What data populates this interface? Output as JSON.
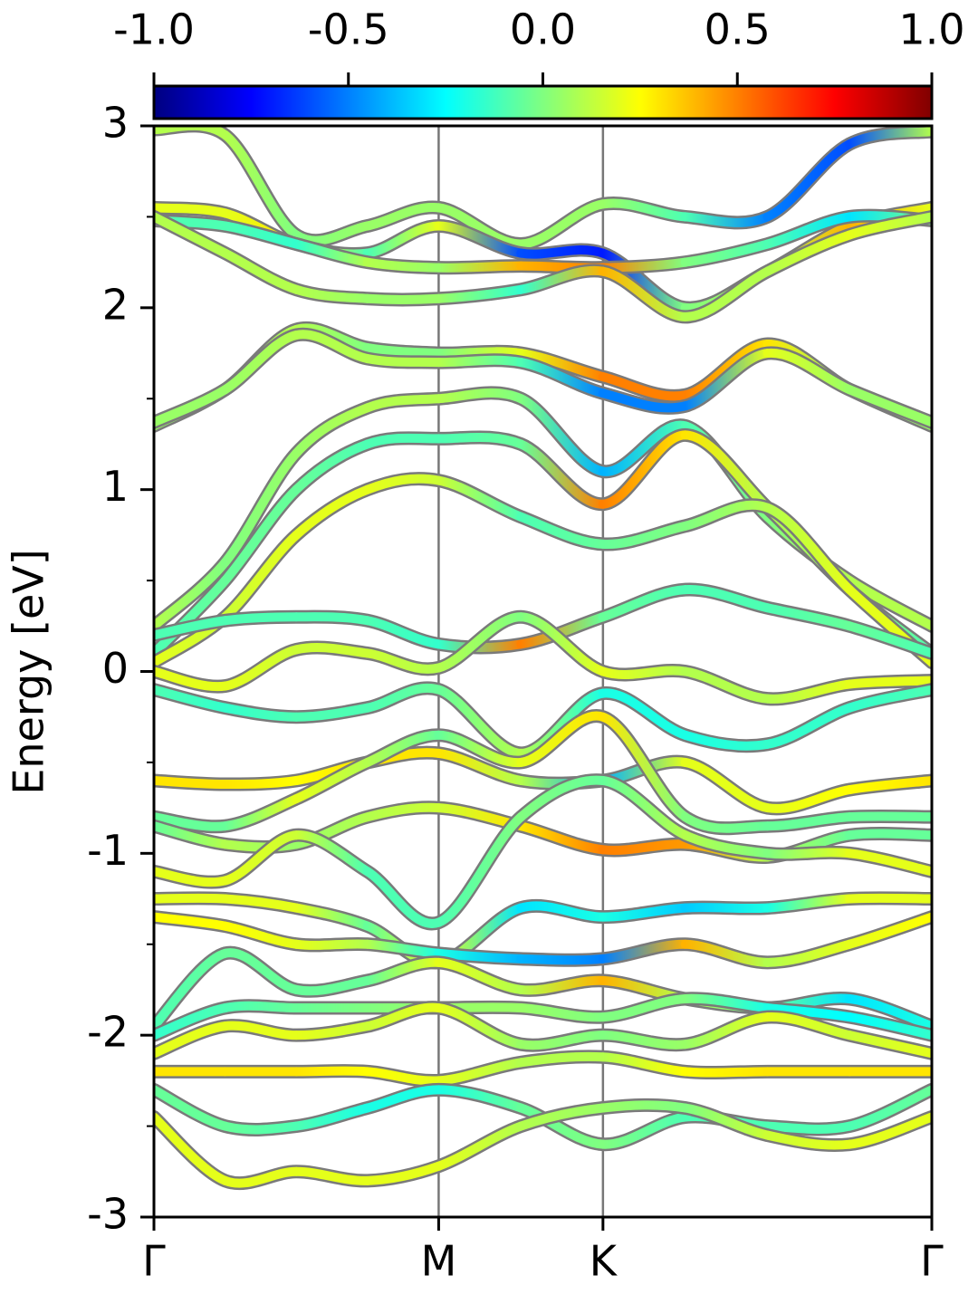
{
  "chart_data": {
    "type": "band_structure",
    "ylabel": "Energy [eV]",
    "colormap": "jet",
    "colorbar": {
      "lim": [
        -1,
        1
      ],
      "ticks": [
        {
          "value": -1,
          "label": "-1.0"
        },
        -0.5,
        {
          "value": 0,
          "label": "0.0"
        },
        0.5,
        {
          "value": 1,
          "label": "1.0"
        }
      ]
    },
    "xlim": [
      0,
      2.732
    ],
    "xticks": [
      {
        "value": 0,
        "label": "Γ"
      },
      {
        "value": 1,
        "label": "M"
      },
      {
        "value": 1.577,
        "label": "K"
      },
      {
        "value": 2.732,
        "label": "Γ"
      }
    ],
    "ylim": [
      -3,
      3
    ],
    "yticks": [
      -3,
      -2,
      -1,
      0,
      1,
      2,
      3
    ],
    "yminorticks": [
      -2.5,
      -1.5,
      -0.5,
      0.5,
      1.5,
      2.5
    ],
    "x": [
      0,
      0.25,
      0.5,
      0.75,
      1,
      1.289,
      1.577,
      1.866,
      2.155,
      2.443,
      2.732
    ],
    "series": [
      {
        "values": [
          2.98,
          2.95,
          2.4,
          2.45,
          2.55,
          2.35,
          2.57,
          2.5,
          2.5,
          2.9,
          2.97
        ],
        "weights": [
          0.1,
          0.1,
          0,
          0.05,
          0.05,
          0.05,
          0.05,
          -0.1,
          -0.5,
          -0.6,
          0.1
        ]
      },
      {
        "values": [
          2.55,
          2.52,
          2.35,
          2.3,
          2.45,
          2.3,
          2.3,
          2.0,
          2.2,
          2.45,
          2.55
        ],
        "weights": [
          0.2,
          0.2,
          0.3,
          -0.1,
          0.2,
          -0.6,
          -0.7,
          0,
          0.1,
          0.4,
          0.2
        ]
      },
      {
        "values": [
          2.48,
          2.45,
          2.35,
          2.25,
          2.22,
          2.23,
          2.22,
          2.25,
          2.35,
          2.5,
          2.48
        ],
        "weights": [
          -0.1,
          -0.1,
          -0.15,
          0.1,
          0.05,
          0.4,
          0.5,
          0,
          -0.1,
          -0.3,
          0
        ]
      },
      {
        "values": [
          2.5,
          2.3,
          2.1,
          2.05,
          2.05,
          2.1,
          2.2,
          1.95,
          2.2,
          2.4,
          2.5
        ],
        "weights": [
          0.1,
          0.1,
          0.1,
          0.05,
          0.05,
          -0.15,
          0.4,
          0.1,
          0.1,
          0.2,
          0.1
        ]
      },
      {
        "values": [
          1.35,
          1.55,
          1.88,
          1.78,
          1.75,
          1.75,
          1.62,
          1.52,
          1.8,
          1.55,
          1.35
        ],
        "weights": [
          0.05,
          0.05,
          0.1,
          0,
          0,
          0.2,
          0.5,
          0.5,
          0.3,
          0.05,
          0.05
        ]
      },
      {
        "values": [
          1.37,
          1.55,
          1.85,
          1.72,
          1.7,
          1.7,
          1.53,
          1.46,
          1.75,
          1.55,
          1.37
        ],
        "weights": [
          0.05,
          0.05,
          0.1,
          0.1,
          0.1,
          -0.1,
          -0.5,
          -0.5,
          0.2,
          0.05,
          0.05
        ]
      },
      {
        "values": [
          0.25,
          0.6,
          1.2,
          1.45,
          1.5,
          1.5,
          1.1,
          1.35,
          0.85,
          0.5,
          0.25
        ],
        "weights": [
          0.1,
          0,
          0.05,
          0.1,
          0.1,
          0,
          -0.4,
          -0.1,
          0,
          0.1,
          0.1
        ]
      },
      {
        "values": [
          0.1,
          0.5,
          1.0,
          1.25,
          1.28,
          1.25,
          0.92,
          1.3,
          0.9,
          0.45,
          0.1
        ],
        "weights": [
          -0.1,
          -0.05,
          -0.05,
          -0.1,
          -0.1,
          -0.05,
          0.5,
          0.3,
          0.1,
          0.05,
          -0.1
        ]
      },
      {
        "values": [
          0.05,
          0.3,
          0.75,
          1.0,
          1.05,
          0.85,
          0.7,
          0.8,
          0.9,
          0.45,
          0.05
        ],
        "weights": [
          0.2,
          0.15,
          0.2,
          0.2,
          0.15,
          -0.1,
          -0.05,
          0,
          0.1,
          0.2,
          0.2
        ]
      },
      {
        "values": [
          0.2,
          0.28,
          0.3,
          0.28,
          0.15,
          0.15,
          0.3,
          0.45,
          0.35,
          0.25,
          0.1
        ],
        "weights": [
          -0.1,
          -0.1,
          -0.1,
          -0.1,
          -0.15,
          0.5,
          -0.05,
          -0.1,
          -0.1,
          -0.05,
          -0.1
        ]
      },
      {
        "values": [
          0,
          -0.08,
          0.12,
          0.1,
          0.02,
          0.3,
          0,
          0,
          -0.15,
          -0.07,
          -0.05
        ],
        "weights": [
          0.2,
          0.2,
          0.15,
          0.15,
          0.1,
          0,
          0.2,
          0.1,
          0.1,
          0.2,
          0.2
        ]
      },
      {
        "values": [
          -0.1,
          -0.2,
          -0.25,
          -0.2,
          -0.1,
          -0.45,
          -0.12,
          -0.35,
          -0.4,
          -0.2,
          -0.1
        ],
        "weights": [
          -0.1,
          -0.15,
          -0.1,
          -0.1,
          -0.05,
          0.1,
          -0.2,
          -0.2,
          -0.15,
          -0.15,
          -0.1
        ]
      },
      {
        "values": [
          -0.6,
          -0.62,
          -0.6,
          -0.5,
          -0.45,
          -0.6,
          -0.6,
          -0.5,
          -0.75,
          -0.65,
          -0.6
        ],
        "weights": [
          0.3,
          0.3,
          0.25,
          0.3,
          0.3,
          0.1,
          -0.4,
          0.2,
          0.2,
          0.25,
          0.3
        ]
      },
      {
        "values": [
          -0.8,
          -0.85,
          -0.7,
          -0.5,
          -0.35,
          -0.5,
          -0.25,
          -0.8,
          -0.85,
          -0.8,
          -0.8
        ],
        "weights": [
          -0.05,
          -0.05,
          0.2,
          0.1,
          -0.05,
          0.2,
          0.3,
          0,
          -0.05,
          -0.05,
          -0.05
        ]
      },
      {
        "values": [
          -0.85,
          -0.95,
          -0.95,
          -0.8,
          -0.75,
          -0.85,
          -0.98,
          -0.95,
          -1.02,
          -0.9,
          -0.9
        ],
        "weights": [
          -0.05,
          0.1,
          0.05,
          0.1,
          0.15,
          0.3,
          0.5,
          0.45,
          0.1,
          -0.05,
          -0.05
        ]
      },
      {
        "values": [
          -1.1,
          -1.15,
          -0.9,
          -1.1,
          -1.38,
          -0.8,
          -0.6,
          -0.9,
          -1.0,
          -1.0,
          -1.1
        ],
        "weights": [
          0.2,
          0.2,
          0.15,
          -0.1,
          -0.1,
          0,
          -0.05,
          0.1,
          0,
          0.2,
          0.2
        ]
      },
      {
        "values": [
          -1.25,
          -1.25,
          -1.3,
          -1.4,
          -1.6,
          -1.3,
          -1.35,
          -1.3,
          -1.3,
          -1.25,
          -1.25
        ],
        "weights": [
          0.2,
          0.2,
          0.2,
          -0.05,
          0.2,
          -0.3,
          -0.2,
          -0.35,
          -0.2,
          0.2,
          0.2
        ]
      },
      {
        "values": [
          -1.35,
          -1.4,
          -1.5,
          -1.5,
          -1.55,
          -1.58,
          -1.58,
          -1.5,
          -1.6,
          -1.5,
          -1.35
        ],
        "weights": [
          0.25,
          0.25,
          0.2,
          0.1,
          -0.2,
          -0.4,
          -0.5,
          0.4,
          0.1,
          0.2,
          0.25
        ]
      },
      {
        "values": [
          -1.95,
          -1.55,
          -1.75,
          -1.7,
          -1.6,
          -1.75,
          -1.7,
          -1.8,
          -1.85,
          -1.8,
          -1.95
        ],
        "weights": [
          -0.1,
          -0.05,
          -0.05,
          -0.05,
          0.2,
          0.1,
          0.4,
          0.1,
          -0.05,
          -0.3,
          -0.2
        ]
      },
      {
        "values": [
          -2.0,
          -1.85,
          -1.85,
          -1.85,
          -1.85,
          -1.85,
          -1.9,
          -1.8,
          -1.85,
          -1.9,
          -2.0
        ],
        "weights": [
          -0.15,
          -0.1,
          -0.05,
          0,
          0.05,
          0.05,
          0,
          0,
          -0.2,
          -0.25,
          -0.15
        ]
      },
      {
        "values": [
          -2.1,
          -1.95,
          -2.0,
          -1.95,
          -1.85,
          -2.05,
          -2.0,
          -2.05,
          -1.9,
          -2.0,
          -2.1
        ],
        "weights": [
          0.2,
          0.2,
          0.2,
          0.15,
          0.2,
          0.05,
          0,
          0.05,
          0.2,
          0.15,
          0.2
        ]
      },
      {
        "values": [
          -2.2,
          -2.2,
          -2.2,
          -2.2,
          -2.25,
          -2.15,
          -2.12,
          -2.2,
          -2.2,
          -2.2,
          -2.2
        ],
        "weights": [
          0.3,
          0.3,
          0.3,
          0.25,
          0.2,
          0.1,
          0.1,
          0.25,
          0.3,
          0.3,
          0.3
        ]
      },
      {
        "values": [
          -2.3,
          -2.5,
          -2.5,
          -2.4,
          -2.3,
          -2.4,
          -2.6,
          -2.45,
          -2.5,
          -2.5,
          -2.3
        ],
        "weights": [
          -0.05,
          -0.05,
          -0.1,
          -0.2,
          -0.2,
          -0.05,
          0,
          -0.1,
          -0.1,
          -0.1,
          -0.05
        ]
      },
      {
        "values": [
          -2.45,
          -2.8,
          -2.75,
          -2.8,
          -2.72,
          -2.5,
          -2.4,
          -2.4,
          -2.55,
          -2.6,
          -2.45
        ],
        "weights": [
          0.2,
          0.2,
          0.2,
          0.2,
          0.2,
          0.1,
          0.05,
          0,
          0.15,
          0.2,
          0.2
        ]
      }
    ]
  }
}
